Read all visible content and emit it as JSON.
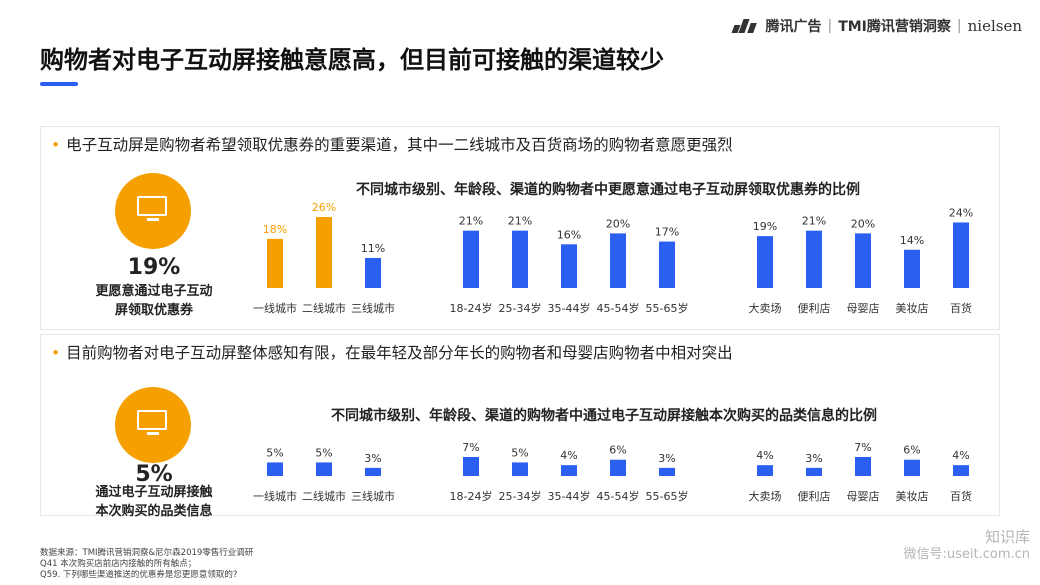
{
  "brand": {
    "tencent": "腾讯广告",
    "tmi": "TMI腾讯营销洞察",
    "nielsen": "nielsen"
  },
  "title": "购物者对电子互动屏接触意愿高，但目前可接触的渠道较少",
  "colors": {
    "accent": "#f5a000",
    "bar": "#2b5ff0",
    "title_bar": "#2b5ff0"
  },
  "panel1": {
    "bullet": "电子互动屏是购物者希望领取优惠券的重要渠道，其中一二线城市及百货商场的购物者意愿更强烈",
    "icon": "monitor-icon",
    "kpi_value": "19%",
    "kpi_label_line1": "更愿意通过电子互动",
    "kpi_label_line2": "屏领取优惠券"
  },
  "panel2": {
    "bullet": "目前购物者对电子互动屏整体感知有限，在最年轻及部分年长的购物者和母婴店购物者中相对突出",
    "icon": "monitor-icon",
    "kpi_value": "5%",
    "kpi_label_line1": "通过电子互动屏接触",
    "kpi_label_line2": "本次购买的品类信息"
  },
  "chart_data": [
    {
      "type": "bar",
      "title": "不同城市级别、年龄段、渠道的购物者中更愿意通过电子互动屏领取优惠券的比例",
      "categories": [
        "一线城市",
        "二线城市",
        "三线城市",
        "18-24岁",
        "25-34岁",
        "35-44岁",
        "45-54岁",
        "55-65岁",
        "大卖场",
        "便利店",
        "母婴店",
        "美妆店",
        "百货"
      ],
      "values": [
        18,
        26,
        11,
        21,
        21,
        16,
        20,
        17,
        19,
        21,
        20,
        14,
        24
      ],
      "labels": [
        "18%",
        "26%",
        "11%",
        "21%",
        "21%",
        "16%",
        "20%",
        "17%",
        "19%",
        "21%",
        "20%",
        "14%",
        "24%"
      ],
      "highlight": [
        true,
        true,
        false,
        false,
        false,
        false,
        false,
        false,
        false,
        false,
        false,
        false,
        false
      ],
      "unit": "%",
      "ylim": [
        0,
        26
      ]
    },
    {
      "type": "bar",
      "title": "不同城市级别、年龄段、渠道的购物者中通过电子互动屏接触本次购买的品类信息的比例",
      "categories": [
        "一线城市",
        "二线城市",
        "三线城市",
        "18-24岁",
        "25-34岁",
        "35-44岁",
        "45-54岁",
        "55-65岁",
        "大卖场",
        "便利店",
        "母婴店",
        "美妆店",
        "百货"
      ],
      "values": [
        5,
        5,
        3,
        7,
        5,
        4,
        6,
        3,
        4,
        3,
        7,
        6,
        4
      ],
      "labels": [
        "5%",
        "5%",
        "3%",
        "7%",
        "5%",
        "4%",
        "6%",
        "3%",
        "4%",
        "3%",
        "7%",
        "6%",
        "4%"
      ],
      "highlight": [
        false,
        false,
        false,
        false,
        false,
        false,
        false,
        false,
        false,
        false,
        false,
        false,
        false
      ],
      "unit": "%",
      "ylim": [
        0,
        7
      ]
    }
  ],
  "footnote": {
    "line1": "数据来源：TMI腾讯营销洞察&尼尔森2019零售行业调研",
    "line2": "Q41 本次购买店前店内接触的所有触点；",
    "line3": "Q59. 下列哪些渠道推送的优惠券是您更愿意领取的?"
  },
  "watermark": {
    "name": "知识库",
    "sub": "微信号:useit.com.cn"
  }
}
